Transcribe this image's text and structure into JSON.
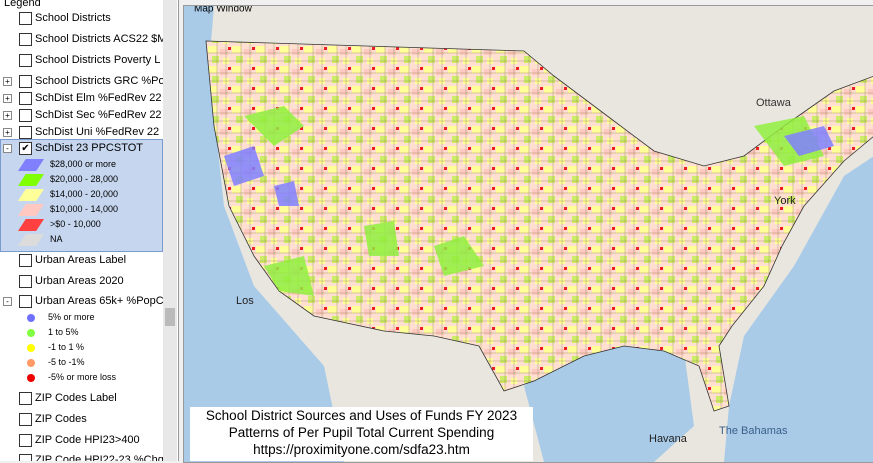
{
  "legend": {
    "title": "Legend",
    "layers": [
      {
        "label": "School Districts"
      },
      {
        "label": "School Districts ACS22 $M"
      },
      {
        "label": "School Districts Poverty L"
      },
      {
        "label": "School Districts GRC %Po"
      },
      {
        "label": "SchDist Elm %FedRev 22"
      },
      {
        "label": "SchDist Sec %FedRev 22"
      },
      {
        "label": "SchDist Uni %FedRev 22"
      },
      {
        "label": "SchDist 23 PPCSTOT",
        "classes": [
          "$28,000 or more",
          "$20,000 - 28,000",
          "$14,000 - 20,000",
          "$10,000 - 14,000",
          ">$0 - 10,000",
          "NA"
        ]
      },
      {
        "label": "Urban Areas Label"
      },
      {
        "label": "Urban Areas 2020"
      },
      {
        "label": "Urban Areas 65k+ %PopC",
        "classes": [
          "5% or more",
          "1 to 5%",
          "-1 to 1 %",
          "-5 to -1%",
          "-5% or more loss"
        ]
      },
      {
        "label": "ZIP Codes Label"
      },
      {
        "label": "ZIP Codes"
      },
      {
        "label": "ZIP Code HPI23>400"
      },
      {
        "label": "ZIP Code HPI22-23 %Chg"
      }
    ]
  },
  "map": {
    "title": "Map Window",
    "places": [
      "Ottawa",
      "York",
      "Los",
      "Havana",
      "The Bahamas"
    ],
    "caption": [
      "School District Sources and Uses of Funds FY 2023",
      "Patterns of Per Pupil Total Current Spending",
      "https://proximityone.com/sdfa23.htm"
    ]
  }
}
